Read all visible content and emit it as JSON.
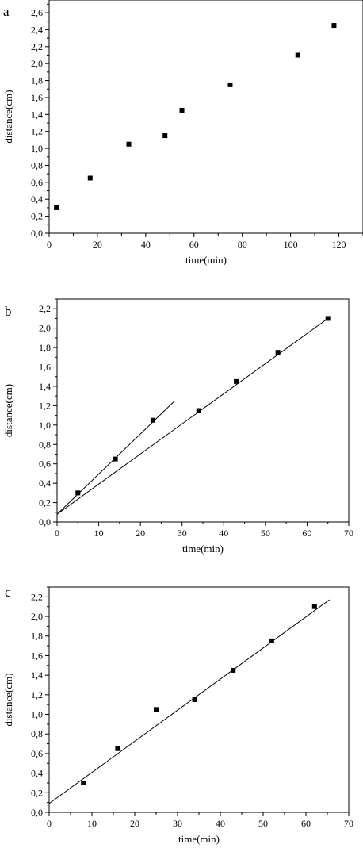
{
  "chart_data": [
    {
      "panel": "a",
      "type": "scatter",
      "xlabel": "time(min)",
      "ylabel": "distance(cm)",
      "xlim": [
        0,
        130
      ],
      "ylim": [
        0.0,
        2.75
      ],
      "xticks": [
        0,
        20,
        40,
        60,
        80,
        100,
        120
      ],
      "yticks": [
        0.0,
        0.2,
        0.4,
        0.6,
        0.8,
        1.0,
        1.2,
        1.4,
        1.6,
        1.8,
        2.0,
        2.2,
        2.4,
        2.6
      ],
      "decimal_separator": ",",
      "grid": false,
      "points": [
        {
          "x": 3,
          "y": 0.3
        },
        {
          "x": 17,
          "y": 0.65
        },
        {
          "x": 33,
          "y": 1.05
        },
        {
          "x": 48,
          "y": 1.15
        },
        {
          "x": 55,
          "y": 1.45
        },
        {
          "x": 75,
          "y": 1.75
        },
        {
          "x": 103,
          "y": 2.1
        },
        {
          "x": 118,
          "y": 2.45
        }
      ],
      "fit_lines": []
    },
    {
      "panel": "b",
      "type": "scatter",
      "xlabel": "time(min)",
      "ylabel": "distance(cm)",
      "xlim": [
        0,
        70
      ],
      "ylim": [
        0.0,
        2.3
      ],
      "xticks": [
        0,
        10,
        20,
        30,
        40,
        50,
        60,
        70
      ],
      "yticks": [
        0.0,
        0.2,
        0.4,
        0.6,
        0.8,
        1.0,
        1.2,
        1.4,
        1.6,
        1.8,
        2.0,
        2.2
      ],
      "decimal_separator": ",",
      "grid": false,
      "points": [
        {
          "x": 5,
          "y": 0.3
        },
        {
          "x": 14,
          "y": 0.65
        },
        {
          "x": 23,
          "y": 1.05
        },
        {
          "x": 34,
          "y": 1.15
        },
        {
          "x": 43,
          "y": 1.45
        },
        {
          "x": 53,
          "y": 1.75
        },
        {
          "x": 65,
          "y": 2.1
        }
      ],
      "fit_lines": [
        {
          "from": {
            "x": 0,
            "y": 0.08
          },
          "to": {
            "x": 28,
            "y": 1.24
          }
        },
        {
          "from": {
            "x": 0,
            "y": 0.08
          },
          "to": {
            "x": 65,
            "y": 2.1
          }
        }
      ]
    },
    {
      "panel": "c",
      "type": "scatter",
      "xlabel": "time(min)",
      "ylabel": "distance(cm)",
      "xlim": [
        0,
        70
      ],
      "ylim": [
        0.0,
        2.3
      ],
      "xticks": [
        0,
        10,
        20,
        30,
        40,
        50,
        60,
        70
      ],
      "yticks": [
        0.0,
        0.2,
        0.4,
        0.6,
        0.8,
        1.0,
        1.2,
        1.4,
        1.6,
        1.8,
        2.0,
        2.2
      ],
      "decimal_separator": ",",
      "grid": false,
      "points": [
        {
          "x": 8,
          "y": 0.3
        },
        {
          "x": 16,
          "y": 0.65
        },
        {
          "x": 25,
          "y": 1.05
        },
        {
          "x": 34,
          "y": 1.15
        },
        {
          "x": 43,
          "y": 1.45
        },
        {
          "x": 52,
          "y": 1.75
        },
        {
          "x": 62,
          "y": 2.1
        }
      ],
      "fit_lines": [
        {
          "from": {
            "x": 0,
            "y": 0.09
          },
          "to": {
            "x": 65.5,
            "y": 2.17
          }
        }
      ]
    }
  ]
}
